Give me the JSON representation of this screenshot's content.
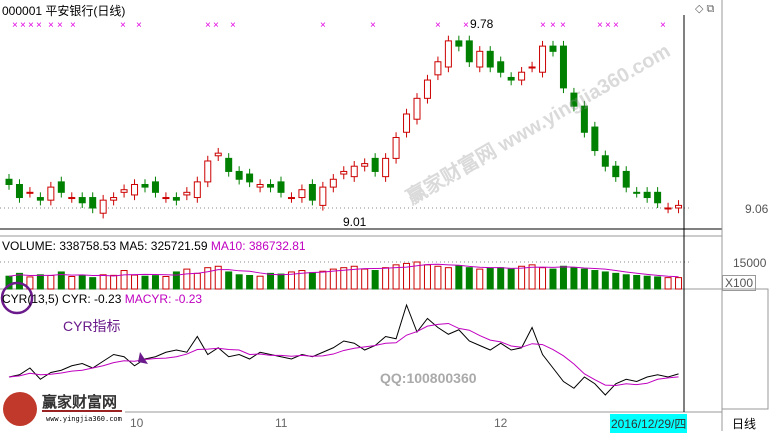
{
  "header": {
    "title": "000001 平安银行(日线)"
  },
  "price_panel": {
    "high_label": "9.78",
    "low_label": "9.01",
    "axis_label": "9.06"
  },
  "volume_panel": {
    "label": "VOLUME: 338758.53",
    "ma5": "MA5: 325721.59",
    "ma10": "MA10: 386732.81",
    "axis_label": "15000",
    "unit": "X100"
  },
  "cyr_panel": {
    "label": "CYR(13,5)",
    "cyr": "CYR: -0.23",
    "macyr": "MACYR: -0.23",
    "annotation": "CYR指标"
  },
  "x_axis": {
    "labels": [
      "10",
      "11",
      "12"
    ],
    "current_date": "2016/12/29/四"
  },
  "right_panel": {
    "period": "日线"
  },
  "watermark": {
    "site": "赢家财富网",
    "url": "www.yingjia360.com",
    "qq": "QQ:100800360",
    "diagonal": "赢家财富网 www.yingjia360.com"
  },
  "colors": {
    "up": "#cc0000",
    "down": "#008000",
    "ma_line": "#c000c0",
    "cyr_line": "#000000",
    "highlight": "#00ffff"
  },
  "chart_data": {
    "type": "candlestick",
    "closes": [
      9.15,
      9.1,
      9.12,
      9.09,
      9.14,
      9.12,
      9.1,
      9.08,
      9.06,
      9.09,
      9.1,
      9.13,
      9.15,
      9.14,
      9.12,
      9.1,
      9.09,
      9.12,
      9.16,
      9.24,
      9.27,
      9.2,
      9.17,
      9.16,
      9.15,
      9.14,
      9.12,
      9.1,
      9.13,
      9.09,
      9.14,
      9.17,
      9.2,
      9.22,
      9.23,
      9.2,
      9.25,
      9.33,
      9.42,
      9.48,
      9.55,
      9.62,
      9.7,
      9.68,
      9.62,
      9.66,
      9.6,
      9.58,
      9.55,
      9.58,
      9.6,
      9.68,
      9.66,
      9.52,
      9.45,
      9.35,
      9.28,
      9.22,
      9.18,
      9.14,
      9.12,
      9.1,
      9.08,
      9.06,
      9.07
    ],
    "volumes": [
      90,
      110,
      85,
      100,
      95,
      120,
      88,
      92,
      80,
      100,
      96,
      130,
      98,
      90,
      94,
      88,
      120,
      140,
      110,
      150,
      160,
      120,
      100,
      95,
      90,
      110,
      105,
      120,
      130,
      115,
      125,
      140,
      150,
      160,
      140,
      130,
      150,
      170,
      180,
      190,
      170,
      160,
      150,
      165,
      150,
      140,
      145,
      150,
      140,
      160,
      170,
      150,
      140,
      160,
      150,
      140,
      130,
      120,
      110,
      100,
      95,
      90,
      85,
      80,
      80
    ],
    "cyr": [
      -0.3,
      -0.25,
      -0.1,
      -0.35,
      -0.2,
      -0.15,
      -0.05,
      0.0,
      -0.1,
      0.05,
      0.2,
      0.15,
      -0.05,
      0.1,
      0.15,
      0.25,
      0.3,
      0.25,
      0.6,
      0.2,
      0.35,
      0.15,
      0.2,
      0.1,
      0.25,
      0.2,
      0.15,
      0.1,
      0.2,
      0.15,
      0.25,
      0.35,
      0.5,
      0.45,
      0.3,
      0.4,
      0.6,
      0.55,
      1.3,
      0.7,
      1.0,
      0.8,
      0.65,
      0.75,
      0.5,
      0.4,
      0.3,
      0.45,
      0.3,
      0.35,
      0.8,
      0.2,
      -0.1,
      -0.4,
      -0.55,
      -0.3,
      -0.45,
      -0.7,
      -0.45,
      -0.35,
      -0.4,
      -0.3,
      -0.25,
      -0.3,
      -0.23
    ],
    "high": 9.78,
    "low": 9.01
  }
}
